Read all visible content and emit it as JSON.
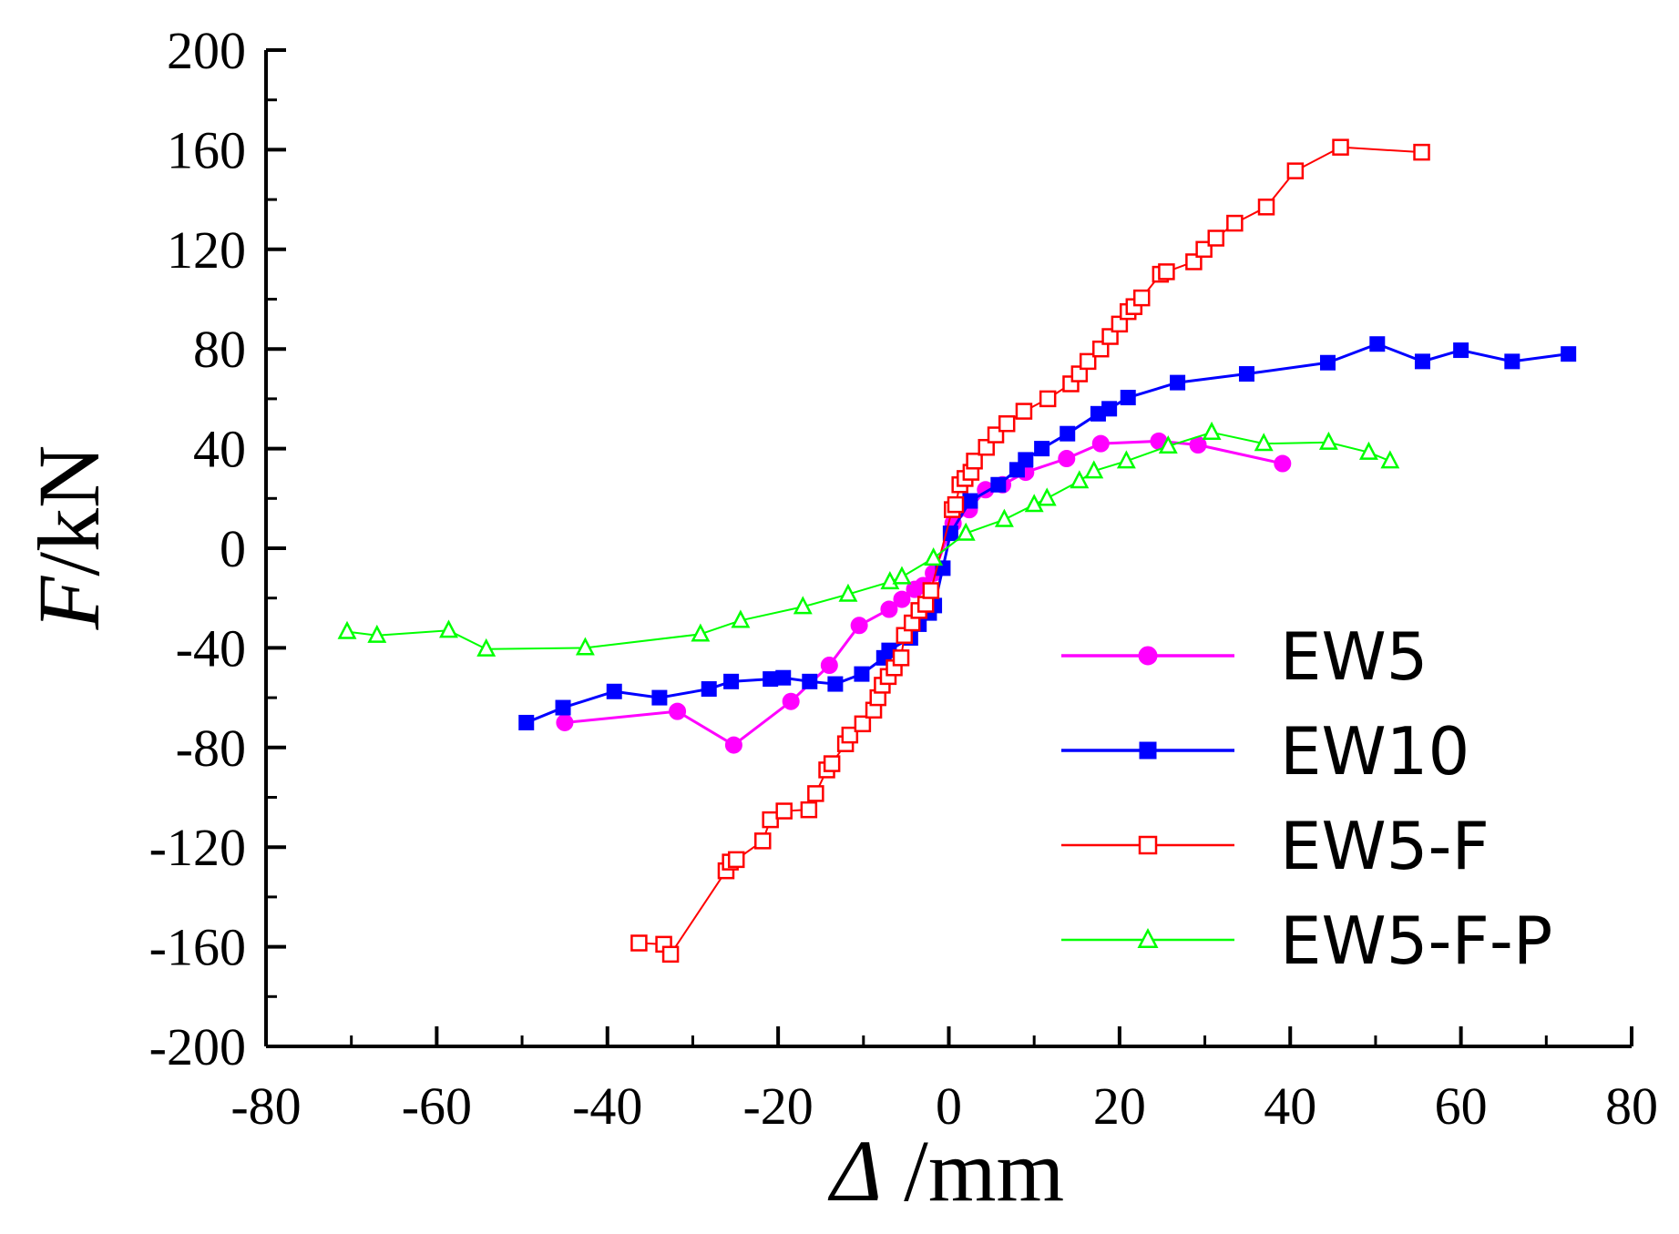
{
  "chart_data": {
    "type": "line",
    "xlabel": {
      "symbol": "Δ",
      "unit": "/mm"
    },
    "ylabel": {
      "symbol": "F",
      "unit": "/kN"
    },
    "xlim": [
      -80,
      80
    ],
    "ylim": [
      -200,
      200
    ],
    "x_ticks": [
      "-80",
      "-60",
      "-40",
      "-20",
      "0",
      "20",
      "40",
      "60",
      "80"
    ],
    "y_ticks": [
      "200",
      "160",
      "120",
      "80",
      "40",
      "0",
      "-40",
      "-80",
      "-120",
      "-160",
      "-200"
    ],
    "grid": false,
    "legend_position": "bottom-right",
    "series": [
      {
        "name": "EW5",
        "color": "#ff00ff",
        "marker": "filled-circle",
        "x": [
          -45,
          -31.8,
          -25.2,
          -18.5,
          -14,
          -10.5,
          -7,
          -5.5,
          -4,
          -3,
          -1.8,
          0.5,
          2.4,
          4.3,
          6.3,
          9,
          13.8,
          17.8,
          24.6,
          29.2,
          39.1
        ],
        "y": [
          -70,
          -65.5,
          -79,
          -61.5,
          -47,
          -31,
          -24.5,
          -20.5,
          -16.5,
          -15,
          -10,
          10,
          15.5,
          23.5,
          25.5,
          30.5,
          36,
          42,
          43,
          41.5,
          34
        ]
      },
      {
        "name": "EW10",
        "color": "#0000ff",
        "marker": "filled-square",
        "x": [
          -49.5,
          -45.2,
          -39.2,
          -33.9,
          -28.1,
          -25.5,
          -20.9,
          -19.4,
          -16.3,
          -13.3,
          -10.2,
          -7.6,
          -7,
          -4.5,
          -3.5,
          -2.3,
          -1.7,
          -0.7,
          0.2,
          2.5,
          5.8,
          8,
          9,
          10.9,
          13.9,
          17.5,
          18.8,
          21,
          26.8,
          34.9,
          44.4,
          50.2,
          55.5,
          60,
          66,
          72.6
        ],
        "y": [
          -70,
          -64,
          -57.5,
          -60,
          -56.5,
          -53.5,
          -52.5,
          -52,
          -53.5,
          -54.5,
          -50.5,
          -44,
          -41,
          -36,
          -30.5,
          -26,
          -23,
          -8,
          6,
          19,
          25.5,
          31.5,
          35.5,
          40,
          46,
          54,
          56,
          60.5,
          66.5,
          70,
          74.5,
          82,
          75,
          79.5,
          75,
          78
        ]
      },
      {
        "name": "EW5-F",
        "color": "#ff0000",
        "marker": "open-square",
        "x": [
          -36.3,
          -33.4,
          -32.6,
          -26.1,
          -25.6,
          -24.9,
          -21.8,
          -20.9,
          -19.3,
          -16.4,
          -15.6,
          -14.3,
          -13.7,
          -12.1,
          -11.6,
          -10.1,
          -8.8,
          -8.3,
          -7.8,
          -7.1,
          -6.4,
          -5.6,
          -5.2,
          -4.3,
          -3.5,
          -2.7,
          -2.1,
          0.4,
          0.8,
          1.3,
          1.9,
          2.6,
          3,
          4.4,
          5.5,
          6.8,
          8.8,
          11.6,
          14.3,
          15.3,
          16.3,
          17.8,
          18.9,
          20,
          21,
          21.7,
          22.6,
          24.8,
          25.5,
          28.7,
          29.9,
          31.3,
          33.5,
          37.2,
          40.6,
          45.9,
          55.4
        ],
        "y": [
          -158.5,
          -159,
          -163,
          -129.5,
          -126,
          -125,
          -117.5,
          -109,
          -105.5,
          -105,
          -98.5,
          -89,
          -86.5,
          -78.5,
          -75,
          -70.5,
          -65,
          -60,
          -55,
          -51.5,
          -48,
          -44,
          -35,
          -30,
          -25,
          -22.5,
          -17,
          15.5,
          17.5,
          25.5,
          28,
          30.5,
          35,
          40.5,
          45.5,
          50,
          55,
          60,
          66,
          70,
          75,
          80,
          85,
          90,
          95,
          97,
          100.5,
          110,
          111,
          115,
          120,
          124.5,
          130.5,
          137,
          151.5,
          161,
          159
        ]
      },
      {
        "name": "EW5-F-P",
        "color": "#00ff00",
        "marker": "open-triangle",
        "x": [
          -70.5,
          -67,
          -58.6,
          -54.2,
          -42.6,
          -29.1,
          -24.4,
          -17.1,
          -11.8,
          -6.9,
          -5.5,
          -1.8,
          2,
          6.5,
          10,
          11.5,
          15.3,
          17,
          20.8,
          25.7,
          30.8,
          36.9,
          44.5,
          49.2,
          51.7
        ],
        "y": [
          -33.5,
          -35,
          -33,
          -40.5,
          -40,
          -34.5,
          -29,
          -23.5,
          -18.5,
          -13.5,
          -11.5,
          -4,
          6,
          11.5,
          17.5,
          20,
          27,
          31,
          35,
          41,
          46.5,
          42,
          42.5,
          38.5,
          35
        ]
      }
    ]
  }
}
